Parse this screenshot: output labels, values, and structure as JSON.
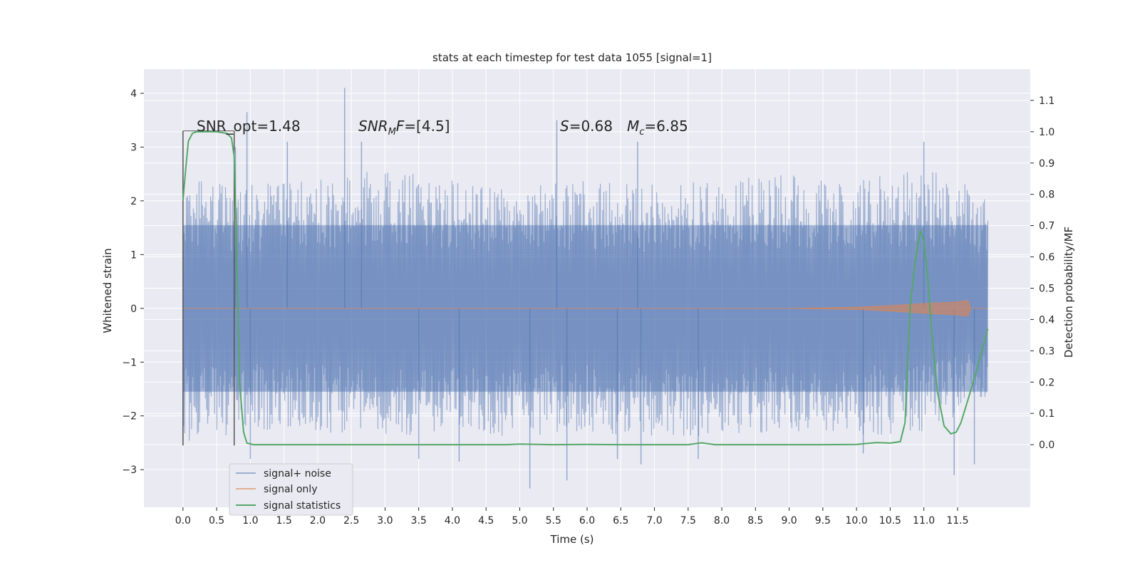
{
  "chart_data": {
    "type": "line",
    "title": "stats at each timestep for test data 1055 [signal=1]",
    "xlabel": "Time (s)",
    "ylabel": "Whitened strain",
    "ylabel_right": "Detection probability/MF",
    "xlim": [
      -0.58,
      12.58
    ],
    "ylim": [
      -3.7,
      4.45
    ],
    "ylim_right": [
      -0.2,
      1.2
    ],
    "x_ticks": [
      0.0,
      0.5,
      1.0,
      1.5,
      2.0,
      2.5,
      3.0,
      3.5,
      4.0,
      4.5,
      5.0,
      5.5,
      6.0,
      6.5,
      7.0,
      7.5,
      8.0,
      8.5,
      9.0,
      9.5,
      10.0,
      10.5,
      11.0,
      11.5
    ],
    "x_tick_labels": [
      "0.0",
      "0.5",
      "1.0",
      "1.5",
      "2.0",
      "2.5",
      "3.0",
      "3.5",
      "4.0",
      "4.5",
      "5.0",
      "5.5",
      "6.0",
      "6.5",
      "7.0",
      "7.5",
      "8.0",
      "8.5",
      "9.0",
      "9.5",
      "10.0",
      "10.5",
      "11.0",
      "11.5"
    ],
    "y_ticks": [
      -3,
      -2,
      -1,
      0,
      1,
      2,
      3,
      4
    ],
    "y_tick_labels": [
      "−3",
      "−2",
      "−1",
      "0",
      "1",
      "2",
      "3",
      "4"
    ],
    "y_right_ticks": [
      0.0,
      0.1,
      0.2,
      0.3,
      0.4,
      0.5,
      0.6,
      0.7,
      0.8,
      0.9,
      1.0,
      1.1
    ],
    "y_right_tick_labels": [
      "0.0",
      "0.1",
      "0.2",
      "0.3",
      "0.4",
      "0.5",
      "0.6",
      "0.7",
      "0.8",
      "0.9",
      "1.0",
      "1.1"
    ],
    "grid": true,
    "legend_position": "lower-left",
    "colors": {
      "background": "#eaeaf2",
      "grid": "#ffffff",
      "signal_noise": "#4c72b0",
      "signal_only": "#dd8452",
      "statistics": "#55a868",
      "vline": "#555555"
    },
    "series": [
      {
        "name": "signal+ noise",
        "axis": "left",
        "description_points": "dense noisy trace, envelope approx",
        "envelope_upper": [
          [
            0.0,
            2.6
          ],
          [
            1.0,
            2.3
          ],
          [
            2.0,
            2.4
          ],
          [
            3.0,
            2.6
          ],
          [
            4.0,
            2.4
          ],
          [
            5.0,
            2.3
          ],
          [
            6.0,
            2.4
          ],
          [
            7.0,
            2.3
          ],
          [
            8.0,
            2.4
          ],
          [
            9.0,
            2.5
          ],
          [
            10.0,
            2.4
          ],
          [
            11.0,
            2.6
          ],
          [
            11.95,
            2.2
          ]
        ],
        "envelope_lower": [
          [
            0.0,
            -2.5
          ],
          [
            1.0,
            -2.3
          ],
          [
            2.0,
            -2.3
          ],
          [
            3.0,
            -2.4
          ],
          [
            4.0,
            -2.3
          ],
          [
            5.0,
            -2.4
          ],
          [
            6.0,
            -2.3
          ],
          [
            7.0,
            -2.4
          ],
          [
            8.0,
            -2.4
          ],
          [
            9.0,
            -2.3
          ],
          [
            10.0,
            -2.4
          ],
          [
            11.0,
            -2.3
          ],
          [
            11.95,
            -1.7
          ]
        ],
        "spikes": [
          [
            0.78,
            3.0
          ],
          [
            0.95,
            3.65
          ],
          [
            1.55,
            3.1
          ],
          [
            2.4,
            4.1
          ],
          [
            2.65,
            3.1
          ],
          [
            5.55,
            3.5
          ],
          [
            6.75,
            3.1
          ],
          [
            11.0,
            3.1
          ],
          [
            1.0,
            -2.8
          ],
          [
            3.5,
            -2.8
          ],
          [
            4.1,
            -2.85
          ],
          [
            5.15,
            -3.35
          ],
          [
            5.7,
            -3.2
          ],
          [
            6.45,
            -2.8
          ],
          [
            6.8,
            -2.9
          ],
          [
            7.65,
            -2.8
          ],
          [
            10.1,
            -2.7
          ],
          [
            11.45,
            -3.1
          ],
          [
            11.75,
            -2.9
          ]
        ]
      },
      {
        "name": "signal only",
        "axis": "left",
        "x": [
          0.0,
          9.0,
          10.0,
          10.5,
          11.0,
          11.5,
          11.65,
          11.7,
          11.95
        ],
        "y": [
          0.0,
          0.0,
          0.02,
          0.05,
          0.09,
          0.12,
          0.15,
          0.0,
          0.0
        ]
      },
      {
        "name": "signal statistics",
        "axis": "right",
        "x": [
          0.0,
          0.04,
          0.08,
          0.14,
          0.2,
          0.3,
          0.5,
          0.65,
          0.72,
          0.76,
          0.8,
          0.84,
          0.9,
          0.95,
          1.05,
          2.0,
          3.0,
          4.0,
          4.5,
          4.8,
          5.0,
          5.5,
          6.0,
          6.5,
          7.0,
          7.5,
          7.7,
          7.9,
          8.5,
          9.0,
          9.5,
          10.0,
          10.3,
          10.5,
          10.65,
          10.72,
          10.8,
          10.88,
          10.95,
          11.0,
          11.05,
          11.12,
          11.2,
          11.3,
          11.4,
          11.48,
          11.55,
          11.65,
          11.8,
          11.95
        ],
        "y": [
          0.78,
          0.88,
          0.97,
          0.995,
          1.0,
          1.0,
          1.0,
          0.995,
          0.98,
          0.92,
          0.62,
          0.2,
          0.04,
          0.005,
          0.0,
          0.0,
          0.0,
          0.0,
          0.0,
          0.0,
          0.002,
          0.0,
          0.001,
          0.0,
          0.0,
          0.0,
          0.006,
          0.0,
          0.0,
          0.0,
          0.0,
          0.001,
          0.007,
          0.005,
          0.01,
          0.07,
          0.45,
          0.6,
          0.685,
          0.65,
          0.55,
          0.35,
          0.17,
          0.06,
          0.035,
          0.04,
          0.07,
          0.14,
          0.25,
          0.37
        ]
      }
    ],
    "vlines": [
      {
        "x": 0.0,
        "ymin": -2.55,
        "ymax": 3.3
      },
      {
        "x": 0.76,
        "ymin": -2.55,
        "ymax": 3.3
      }
    ],
    "annotations": [
      {
        "text": "SNR_opt=1.48",
        "x": 0.2,
        "y": 3.3
      },
      {
        "text": "SNR_MF=[4.5]",
        "x": 2.6,
        "y": 3.3
      },
      {
        "text": "S=0.68",
        "x": 5.7,
        "y": 3.3
      },
      {
        "text": "M_c=6.85",
        "x": 6.65,
        "y": 3.3
      }
    ]
  }
}
